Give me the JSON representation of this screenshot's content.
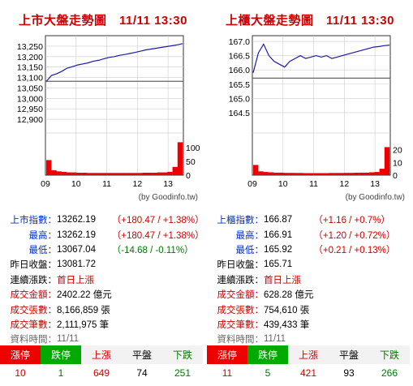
{
  "panels": [
    {
      "title": "上市大盤走勢圖　11/11 13:30",
      "chart_data": {
        "type": "line",
        "ylim": [
          12850,
          13300
        ],
        "yticks": [
          "13,250",
          "13,200",
          "13,150",
          "13,100",
          "13,050",
          "13,000",
          "12,950",
          "12,900"
        ],
        "ytick_values": [
          13250,
          13200,
          13150,
          13100,
          13050,
          13000,
          12950,
          12900
        ],
        "xticks": [
          "09",
          "10",
          "11",
          "12",
          "13"
        ],
        "previous_close": 13081.72,
        "price": [
          13081,
          13110,
          13118,
          13130,
          13145,
          13152,
          13160,
          13165,
          13170,
          13178,
          13182,
          13190,
          13196,
          13200,
          13206,
          13210,
          13215,
          13220,
          13226,
          13232,
          13236,
          13240,
          13244,
          13248,
          13252,
          13256,
          13262
        ],
        "volume_ylim": [
          0,
          130
        ],
        "volume_yticks": [
          "100",
          "50",
          "0"
        ],
        "volume_ytick_values": [
          100,
          50,
          0
        ],
        "volume": [
          55,
          18,
          14,
          12,
          10,
          10,
          9,
          9,
          8,
          8,
          8,
          8,
          8,
          8,
          8,
          8,
          8,
          8,
          8,
          9,
          9,
          9,
          10,
          10,
          12,
          30,
          120
        ]
      },
      "credit": "(by Goodinfo.tw)",
      "stats": [
        {
          "label": "上市指數：",
          "value": "13262.19",
          "change": "（+180.47 / +1.38%）",
          "label_color": "blue",
          "change_color": "red"
        },
        {
          "label": "最高：",
          "value": "13262.19",
          "change": "（+180.47 / +1.38%）",
          "label_color": "blue",
          "change_color": "red"
        },
        {
          "label": "最低：",
          "value": "13067.04",
          "change": "（-14.68 / -0.11%）",
          "label_color": "blue",
          "change_color": "green"
        },
        {
          "label": "昨日收盤：",
          "value": "13081.72",
          "change": "",
          "label_color": "black",
          "change_color": "black"
        },
        {
          "label": "連續漲跌：",
          "value": "首日上漲",
          "change": "",
          "label_color": "black",
          "change_color": "black",
          "value_color": "red"
        },
        {
          "label": "成交金額：",
          "value": "2402.22 億元",
          "change": "",
          "label_color": "red",
          "change_color": "black"
        },
        {
          "label": "成交張數：",
          "value": "8,166,859 張",
          "change": "",
          "label_color": "red",
          "change_color": "black"
        },
        {
          "label": "成交筆數：",
          "value": "2,111,975 筆",
          "change": "",
          "label_color": "red",
          "change_color": "black"
        },
        {
          "label": "資料時間：",
          "value": "11/11",
          "change": "",
          "label_color": "grey",
          "change_color": "black",
          "value_color": "grey"
        }
      ],
      "breadth": {
        "headers": [
          "漲停",
          "跌停",
          "上漲",
          "平盤",
          "下跌"
        ],
        "values": [
          "10",
          "1",
          "649",
          "74",
          "251"
        ]
      }
    },
    {
      "title": "上櫃大盤走勢圖　11/11 13:30",
      "chart_data": {
        "type": "line",
        "ylim": [
          163.9,
          167.2
        ],
        "yticks": [
          "167.0",
          "166.5",
          "166.0",
          "165.5",
          "165.0",
          "164.5"
        ],
        "ytick_values": [
          167.0,
          166.5,
          166.0,
          165.5,
          165.0,
          164.5
        ],
        "xticks": [
          "09",
          "10",
          "11",
          "12",
          "13"
        ],
        "previous_close": 165.71,
        "price": [
          165.9,
          166.6,
          166.9,
          166.5,
          166.3,
          166.2,
          166.1,
          166.3,
          166.4,
          166.5,
          166.4,
          166.45,
          166.5,
          166.45,
          166.5,
          166.4,
          166.45,
          166.5,
          166.55,
          166.6,
          166.65,
          166.7,
          166.75,
          166.8,
          166.82,
          166.85,
          166.87
        ],
        "volume_ylim": [
          0,
          28
        ],
        "volume_yticks": [
          "20",
          "10",
          "0"
        ],
        "volume_ytick_values": [
          20,
          10,
          0
        ],
        "volume": [
          8,
          3,
          2.5,
          2.2,
          2,
          2,
          1.8,
          1.8,
          1.7,
          1.7,
          1.6,
          1.6,
          1.6,
          1.6,
          1.6,
          1.7,
          1.7,
          1.7,
          1.8,
          1.8,
          1.9,
          2,
          2,
          2.2,
          2.5,
          5,
          22
        ]
      },
      "credit": "(by Goodinfo.tw)",
      "stats": [
        {
          "label": "上櫃指數：",
          "value": "166.87",
          "change": "（+1.16 / +0.7%）",
          "label_color": "blue",
          "change_color": "red"
        },
        {
          "label": "最高：",
          "value": "166.91",
          "change": "（+1.20 / +0.72%）",
          "label_color": "blue",
          "change_color": "red"
        },
        {
          "label": "最低：",
          "value": "165.92",
          "change": "（+0.21 / +0.13%）",
          "label_color": "blue",
          "change_color": "red"
        },
        {
          "label": "昨日收盤：",
          "value": "165.71",
          "change": "",
          "label_color": "black",
          "change_color": "black"
        },
        {
          "label": "連續漲跌：",
          "value": "首日上漲",
          "change": "",
          "label_color": "black",
          "change_color": "black",
          "value_color": "red"
        },
        {
          "label": "成交金額：",
          "value": "628.28 億元",
          "change": "",
          "label_color": "red",
          "change_color": "black"
        },
        {
          "label": "成交張數：",
          "value": "754,610 張",
          "change": "",
          "label_color": "red",
          "change_color": "black"
        },
        {
          "label": "成交筆數：",
          "value": "439,433 筆",
          "change": "",
          "label_color": "red",
          "change_color": "black"
        },
        {
          "label": "資料時間：",
          "value": "11/11",
          "change": "",
          "label_color": "grey",
          "change_color": "black",
          "value_color": "grey"
        }
      ],
      "breadth": {
        "headers": [
          "漲停",
          "跌停",
          "上漲",
          "平盤",
          "下跌"
        ],
        "values": [
          "11",
          "5",
          "421",
          "93",
          "266"
        ]
      }
    }
  ],
  "colors": {
    "price_line": "#1a1aaa",
    "prev_close_line": "#666666",
    "volume": "#ee0000",
    "grid": "#cccccc",
    "frame": "#333333"
  }
}
